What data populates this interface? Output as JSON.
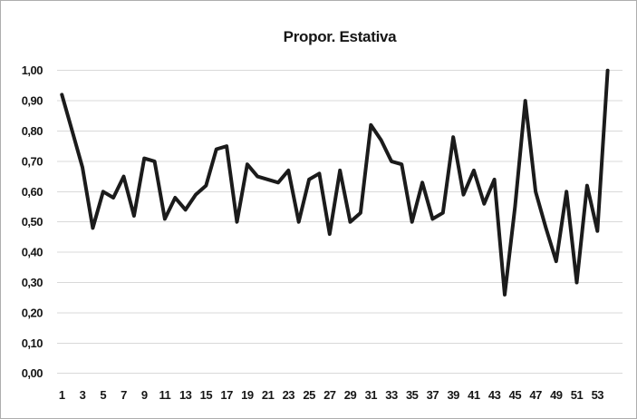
{
  "window": {
    "background": "#ffffff",
    "border_color": "#aeaeae"
  },
  "chart_data": {
    "type": "line",
    "title": "Propor. Estativa",
    "x": [
      1,
      2,
      3,
      4,
      5,
      6,
      7,
      8,
      9,
      10,
      11,
      12,
      13,
      14,
      15,
      16,
      17,
      18,
      19,
      20,
      21,
      22,
      23,
      24,
      25,
      26,
      27,
      28,
      29,
      30,
      31,
      32,
      33,
      34,
      35,
      36,
      37,
      38,
      39,
      40,
      41,
      42,
      43,
      44,
      45,
      46,
      47,
      48,
      49,
      50,
      51,
      52,
      53,
      54
    ],
    "values": [
      0.92,
      0.8,
      0.68,
      0.48,
      0.6,
      0.58,
      0.65,
      0.52,
      0.71,
      0.7,
      0.51,
      0.58,
      0.54,
      0.59,
      0.62,
      0.74,
      0.75,
      0.5,
      0.69,
      0.65,
      0.64,
      0.63,
      0.67,
      0.5,
      0.64,
      0.66,
      0.46,
      0.67,
      0.5,
      0.53,
      0.82,
      0.77,
      0.7,
      0.69,
      0.5,
      0.63,
      0.51,
      0.53,
      0.78,
      0.59,
      0.67,
      0.56,
      0.64,
      0.26,
      0.55,
      0.9,
      0.6,
      0.48,
      0.37,
      0.6,
      0.3,
      0.62,
      0.47,
      1.0
    ],
    "xlabel": "",
    "ylabel": "",
    "ylim": [
      0,
      1
    ],
    "y_tick_step": 0.1,
    "y_tick_labels": [
      "0,00",
      "0,10",
      "0,20",
      "0,30",
      "0,40",
      "0,50",
      "0,60",
      "0,70",
      "0,80",
      "0,90",
      "1,00"
    ],
    "x_tick_labels": [
      "1",
      "3",
      "5",
      "7",
      "9",
      "11",
      "13",
      "15",
      "17",
      "19",
      "21",
      "23",
      "25",
      "27",
      "29",
      "31",
      "33",
      "35",
      "37",
      "39",
      "41",
      "43",
      "45",
      "47",
      "49",
      "51",
      "53"
    ],
    "grid": "horizontal",
    "legend": "none",
    "line_color": "#1b1b1b",
    "line_width": 4,
    "gridline_color": "#d9d9d9"
  }
}
